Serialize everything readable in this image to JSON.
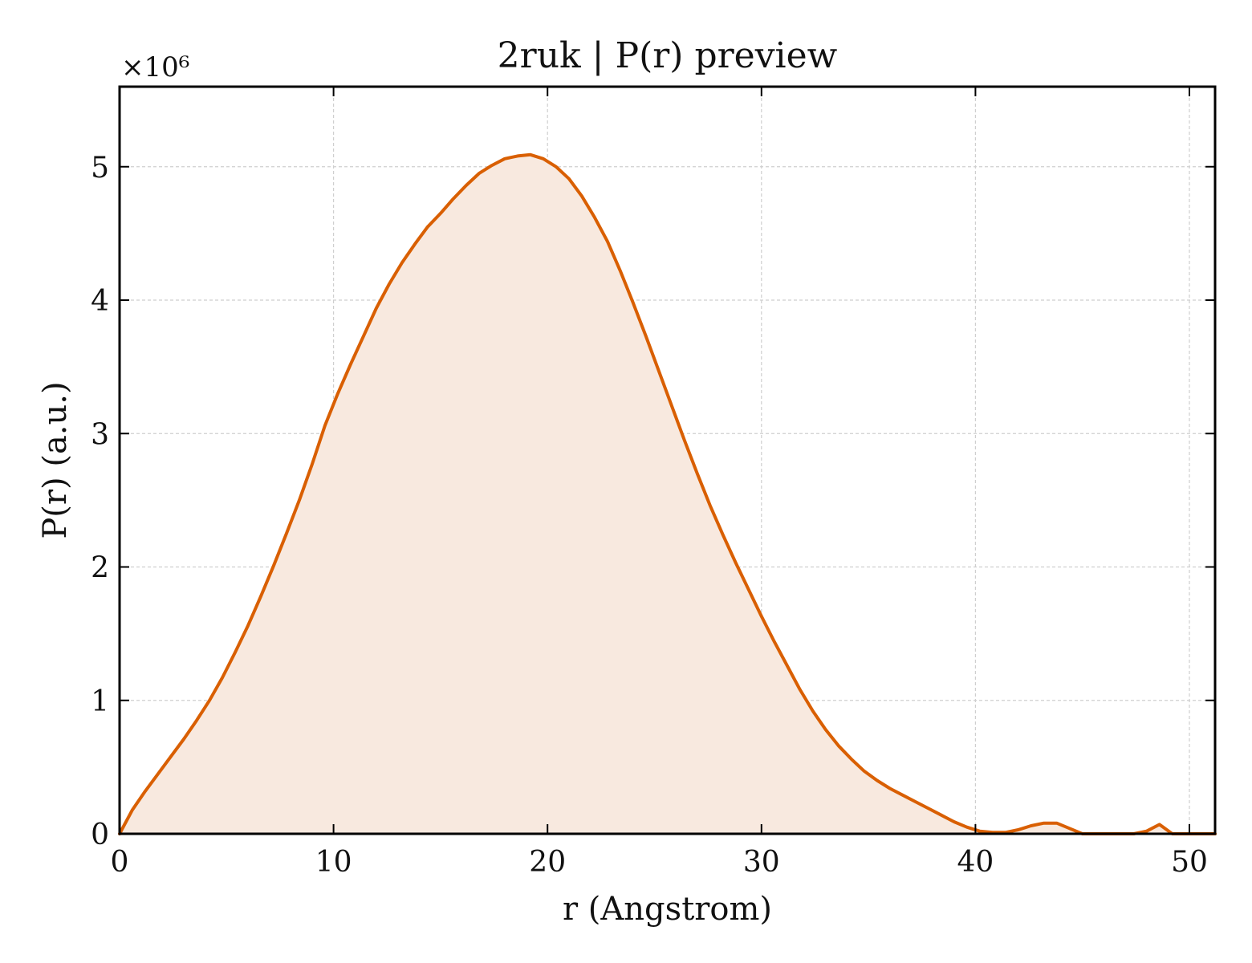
{
  "chart_data": {
    "type": "area",
    "title": "2ruk | P(r) preview",
    "xlabel": "r (Angstrom)",
    "ylabel": "P(r) (a.u.)",
    "y_scale_text": "×10⁶",
    "y_multiplier": 1000000,
    "xlim": [
      0,
      51.2
    ],
    "ylim": [
      0,
      5.6
    ],
    "x_ticks": [
      0,
      10,
      20,
      30,
      40,
      50
    ],
    "y_ticks": [
      0,
      1,
      2,
      3,
      4,
      5
    ],
    "x_tick_labels": [
      "0",
      "10",
      "20",
      "30",
      "40",
      "50"
    ],
    "y_tick_labels": [
      "0",
      "1",
      "2",
      "3",
      "4",
      "5"
    ],
    "grid": true,
    "legend": "none",
    "series": [
      {
        "color": "#d95f02",
        "fill": "#f8e9df",
        "x": [
          0,
          0.6,
          1.2,
          1.8,
          2.4,
          3.0,
          3.6,
          4.2,
          4.8,
          5.4,
          6.0,
          6.6,
          7.2,
          7.8,
          8.4,
          9.0,
          9.6,
          10.2,
          10.8,
          11.4,
          12.0,
          12.6,
          13.2,
          13.8,
          14.4,
          15.0,
          15.6,
          16.2,
          16.8,
          17.4,
          18.0,
          18.6,
          19.2,
          19.8,
          20.4,
          21.0,
          21.6,
          22.2,
          22.8,
          23.4,
          24.0,
          24.6,
          25.2,
          25.8,
          26.4,
          27.0,
          27.6,
          28.2,
          28.8,
          29.4,
          30.0,
          30.6,
          31.2,
          31.8,
          32.4,
          33.0,
          33.6,
          34.2,
          34.8,
          35.4,
          36.0,
          36.6,
          37.2,
          37.8,
          38.4,
          39.0,
          39.6,
          40.2,
          40.8,
          41.4,
          42.0,
          42.6,
          43.2,
          43.8,
          44.4,
          45.0,
          45.6,
          46.2,
          46.8,
          47.4,
          48.0,
          48.6,
          49.2,
          49.8,
          50.4,
          51.2
        ],
        "y": [
          0.0,
          0.18,
          0.32,
          0.45,
          0.58,
          0.71,
          0.85,
          1.0,
          1.17,
          1.36,
          1.56,
          1.78,
          2.01,
          2.25,
          2.5,
          2.77,
          3.06,
          3.3,
          3.52,
          3.73,
          3.94,
          4.12,
          4.28,
          4.42,
          4.55,
          4.65,
          4.76,
          4.86,
          4.95,
          5.01,
          5.06,
          5.08,
          5.09,
          5.06,
          5.0,
          4.91,
          4.78,
          4.62,
          4.44,
          4.22,
          3.98,
          3.73,
          3.47,
          3.21,
          2.95,
          2.7,
          2.46,
          2.24,
          2.03,
          1.83,
          1.63,
          1.44,
          1.26,
          1.08,
          0.92,
          0.78,
          0.66,
          0.56,
          0.47,
          0.4,
          0.34,
          0.29,
          0.24,
          0.19,
          0.14,
          0.09,
          0.05,
          0.02,
          0.01,
          0.01,
          0.03,
          0.06,
          0.08,
          0.08,
          0.04,
          0.0,
          0.0,
          0.0,
          0.0,
          0.0,
          0.02,
          0.07,
          0.0,
          0.0,
          0.0,
          0.0
        ]
      }
    ]
  }
}
